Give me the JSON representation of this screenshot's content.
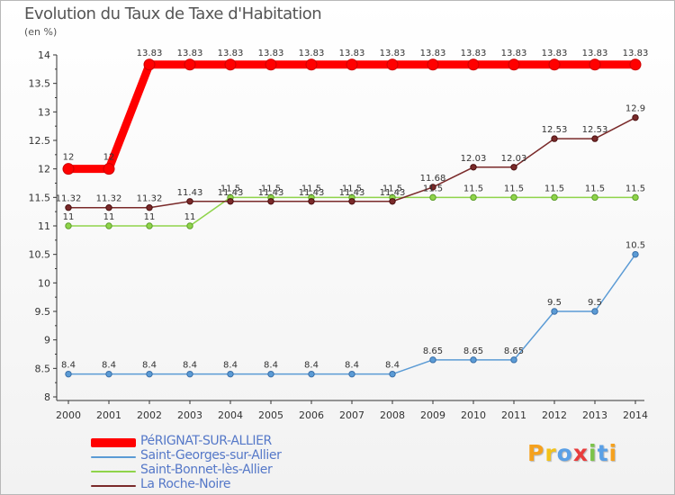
{
  "title": "Evolution du Taux de Taxe d'Habitation",
  "unit": "(en %)",
  "logo": {
    "text": "Proxiti",
    "letters": [
      {
        "ch": "P",
        "color": "#f5a11e"
      },
      {
        "ch": "r",
        "color": "#f2c21a"
      },
      {
        "ch": "o",
        "color": "#5aa0e6"
      },
      {
        "ch": "x",
        "color": "#e83c3c"
      },
      {
        "ch": "i",
        "color": "#7cc34a"
      },
      {
        "ch": "t",
        "color": "#5aa0e6"
      },
      {
        "ch": "i",
        "color": "#f5a11e"
      }
    ]
  },
  "chart_data": {
    "type": "line",
    "x": [
      "2000",
      "2001",
      "2002",
      "2003",
      "2004",
      "2005",
      "2006",
      "2007",
      "2008",
      "2009",
      "2010",
      "2011",
      "2012",
      "2013",
      "2014"
    ],
    "ylim": [
      8,
      14
    ],
    "yticks": [
      "8",
      "8.5",
      "9",
      "9.5",
      "10",
      "10.5",
      "11",
      "11.5",
      "12",
      "12.5",
      "13",
      "13.5",
      "14"
    ],
    "grid": false,
    "legend_position": "bottom-left",
    "series": [
      {
        "name": "PéRIGNAT-SUR-ALLIER",
        "color": "#ff0000",
        "values": [
          12,
          12,
          13.83,
          13.83,
          13.83,
          13.83,
          13.83,
          13.83,
          13.83,
          13.83,
          13.83,
          13.83,
          13.83,
          13.83,
          13.83
        ],
        "labels": [
          "12",
          "12",
          "13.83",
          "13.83",
          "13.83",
          "13.83",
          "13.83",
          "13.83",
          "13.83",
          "13.83",
          "13.83",
          "13.83",
          "13.83",
          "13.83",
          "13.83"
        ]
      },
      {
        "name": "Saint-Georges-sur-Allier",
        "color": "#5b9bd5",
        "values": [
          8.4,
          8.4,
          8.4,
          8.4,
          8.4,
          8.4,
          8.4,
          8.4,
          8.4,
          8.65,
          8.65,
          8.65,
          9.5,
          9.5,
          10.5
        ],
        "labels": [
          "8.4",
          "8.4",
          "8.4",
          "8.4",
          "8.4",
          "8.4",
          "8.4",
          "8.4",
          "8.4",
          "8.65",
          "8.65",
          "8.65",
          "9.5",
          "9.5",
          "10.5"
        ]
      },
      {
        "name": "Saint-Bonnet-lès-Allier",
        "color": "#8fd44a",
        "values": [
          11,
          11,
          11,
          11,
          11.5,
          11.5,
          11.5,
          11.5,
          11.5,
          11.5,
          11.5,
          11.5,
          11.5,
          11.5,
          11.5
        ],
        "labels": [
          "11",
          "11",
          "11",
          "11",
          "11.5",
          "11.5",
          "11.5",
          "11.5",
          "11.5",
          "11.5",
          "11.5",
          "11.5",
          "11.5",
          "11.5",
          "11.5"
        ]
      },
      {
        "name": "La Roche-Noire",
        "color": "#7a2a2a",
        "values": [
          11.32,
          11.32,
          11.32,
          11.43,
          11.43,
          11.43,
          11.43,
          11.43,
          11.43,
          11.68,
          12.03,
          12.03,
          12.53,
          12.53,
          12.9
        ],
        "labels": [
          "11.32",
          "11.32",
          "11.32",
          "11.43",
          "11.43",
          "11.43",
          "11.43",
          "11.43",
          "11.43",
          "11.68",
          "12.03",
          "12.03",
          "12.53",
          "12.53",
          "12.9"
        ]
      }
    ]
  }
}
